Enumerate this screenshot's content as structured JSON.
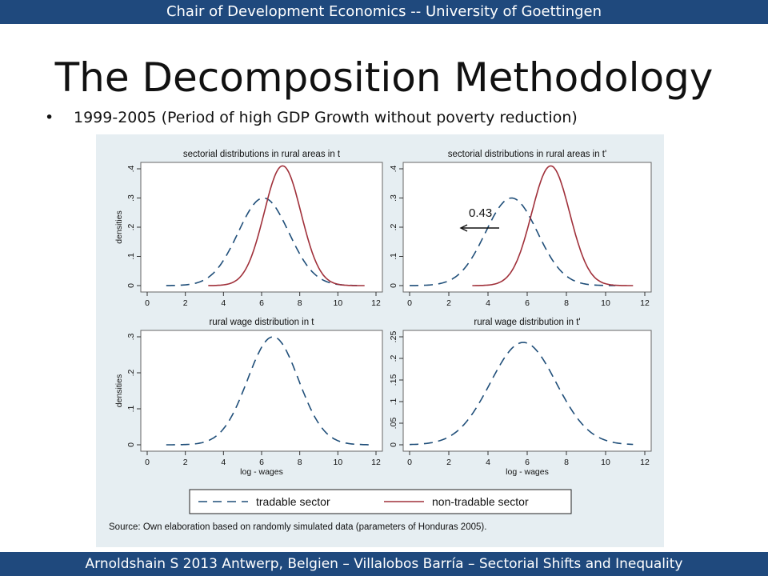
{
  "header": {
    "top_banner": "Chair of Development Economics -- University of Goettingen",
    "slide_title": "The Decomposition Methodology",
    "bullet": "1999-2005 (Period of high GDP Growth without poverty reduction)"
  },
  "footer": {
    "bottom_banner": "Arnoldshain S 2013 Antwerp, Belgien – Villalobos Barría – Sectorial Shifts and Inequality"
  },
  "colors": {
    "banner": "#1f497d",
    "tradable": "#1f4e79",
    "non_tradable": "#a0303a",
    "panel_bg": "#e6eef2",
    "plot_bg": "#ffffff"
  },
  "chart_data": [
    {
      "type": "line",
      "title": "sectorial distributions in rural areas in t",
      "ylabel": "densities",
      "xlabel": "",
      "xlim": [
        0,
        12
      ],
      "ylim": [
        0,
        0.4
      ],
      "xticks": [
        "0",
        "2",
        "4",
        "6",
        "8",
        "10",
        "12"
      ],
      "yticks": [
        "0",
        ".1",
        ".2",
        ".3",
        ".4"
      ],
      "series": [
        {
          "name": "tradable sector",
          "dist": "normal",
          "mean": 6.1,
          "sd": 1.33,
          "range": [
            1.0,
            11.0
          ],
          "peak": 0.3
        },
        {
          "name": "non-tradable sector",
          "dist": "normal",
          "mean": 7.1,
          "sd": 0.97,
          "range": [
            3.2,
            11.4
          ],
          "peak": 0.41
        }
      ]
    },
    {
      "type": "line",
      "title": "sectorial distributions in rural areas in t'",
      "ylabel": "",
      "xlabel": "",
      "xlim": [
        0,
        12
      ],
      "ylim": [
        0,
        0.4
      ],
      "xticks": [
        "0",
        "2",
        "4",
        "6",
        "8",
        "10",
        "12"
      ],
      "yticks": [
        "0",
        ".1",
        ".2",
        ".3",
        ".4"
      ],
      "annotation": "0.43",
      "series": [
        {
          "name": "tradable sector",
          "dist": "normal",
          "mean": 5.2,
          "sd": 1.33,
          "range": [
            0.0,
            10.5
          ],
          "peak": 0.3
        },
        {
          "name": "non-tradable sector",
          "dist": "normal",
          "mean": 7.2,
          "sd": 0.97,
          "range": [
            3.2,
            11.4
          ],
          "peak": 0.41
        }
      ]
    },
    {
      "type": "line",
      "title": "rural wage distribution in t",
      "ylabel": "densities",
      "xlabel": "log - wages",
      "xlim": [
        0,
        12
      ],
      "ylim": [
        0,
        0.3
      ],
      "xticks": [
        "0",
        "2",
        "4",
        "6",
        "8",
        "10",
        "12"
      ],
      "yticks": [
        "0",
        ".1",
        ".2",
        ".3"
      ],
      "series": [
        {
          "name": "tradable sector",
          "dist": "normal",
          "mean": 6.6,
          "sd": 1.33,
          "range": [
            1.0,
            11.8
          ],
          "peak": 0.3
        }
      ]
    },
    {
      "type": "line",
      "title": "rural wage distribution in t'",
      "ylabel": "",
      "xlabel": "log - wages",
      "xlim": [
        0,
        12
      ],
      "ylim": [
        0,
        0.25
      ],
      "xticks": [
        "0",
        "2",
        "4",
        "6",
        "8",
        "10",
        "12"
      ],
      "yticks": [
        "0",
        ".05",
        ".1",
        ".15",
        ".2",
        ".25"
      ],
      "series": [
        {
          "name": "tradable sector",
          "dist": "normal",
          "mean": 5.8,
          "sd": 1.68,
          "range": [
            0.0,
            11.4
          ],
          "peak": 0.237
        }
      ]
    }
  ],
  "legend": {
    "tradable": "tradable sector",
    "non_tradable": "non-tradable sector"
  },
  "source_note": "Source: Own elaboration based on randomly simulated data (parameters of Honduras 2005)."
}
